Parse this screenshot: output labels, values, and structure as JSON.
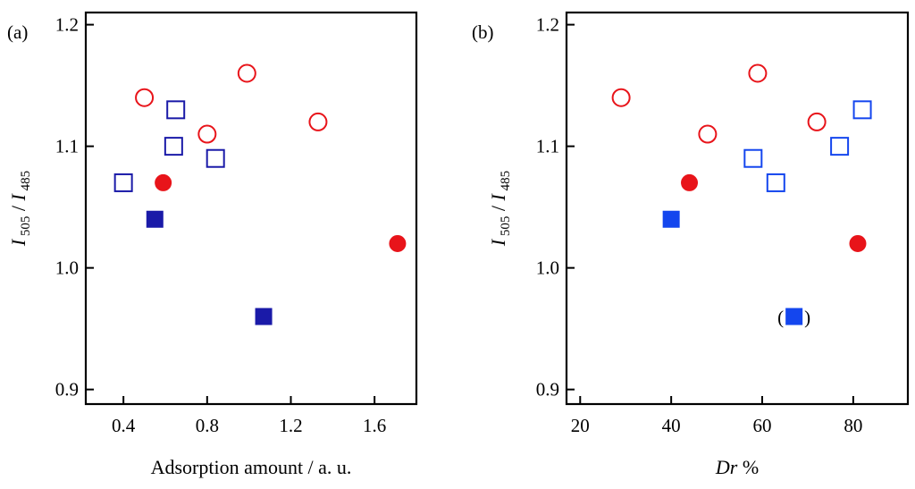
{
  "figure": {
    "colors": {
      "red": "#e8141a",
      "navy": "#1a1aa8",
      "blue": "#1446ee"
    }
  },
  "chart_data": [
    {
      "type": "scatter",
      "panel_label": "(a)",
      "xlabel": "Adsorption amount / a. u.",
      "ylabel": {
        "i1": "I",
        "s1": "505",
        "sep": " / ",
        "i2": "I",
        "s2": "485"
      },
      "xlim": [
        0.22,
        1.8
      ],
      "ylim": [
        0.888,
        1.21
      ],
      "xticks": [
        0.4,
        0.8,
        1.2,
        1.6
      ],
      "xtick_labels": [
        "0.4",
        "0.8",
        "1.2",
        "1.6"
      ],
      "yticks": [
        0.9,
        1.0,
        1.1,
        1.2
      ],
      "ytick_labels": [
        "0.9",
        "1.0",
        "1.1",
        "1.2"
      ],
      "series": [
        {
          "name": "open-circles",
          "marker": "circle",
          "filled": false,
          "color": "#e8141a",
          "points": [
            {
              "x": 0.5,
              "y": 1.14
            },
            {
              "x": 0.99,
              "y": 1.16
            },
            {
              "x": 0.8,
              "y": 1.11
            },
            {
              "x": 1.33,
              "y": 1.12
            }
          ]
        },
        {
          "name": "filled-circles",
          "marker": "circle",
          "filled": true,
          "color": "#e8141a",
          "points": [
            {
              "x": 0.59,
              "y": 1.07
            },
            {
              "x": 1.71,
              "y": 1.02
            }
          ]
        },
        {
          "name": "open-squares",
          "marker": "square",
          "filled": false,
          "color": "#1a1aa8",
          "points": [
            {
              "x": 0.65,
              "y": 1.13
            },
            {
              "x": 0.64,
              "y": 1.1
            },
            {
              "x": 0.84,
              "y": 1.09
            },
            {
              "x": 0.4,
              "y": 1.07
            }
          ]
        },
        {
          "name": "filled-squares",
          "marker": "square",
          "filled": true,
          "color": "#1a1aa8",
          "points": [
            {
              "x": 0.55,
              "y": 1.04
            },
            {
              "x": 1.07,
              "y": 0.96
            }
          ]
        }
      ]
    },
    {
      "type": "scatter",
      "panel_label": "(b)",
      "xlabel": "Dr %",
      "xlabel_parts": {
        "italic": "Dr",
        "rest": " %"
      },
      "ylabel": {
        "i1": "I",
        "s1": "505",
        "sep": " / ",
        "i2": "I",
        "s2": "485"
      },
      "xlim": [
        17,
        92
      ],
      "ylim": [
        0.888,
        1.21
      ],
      "xticks": [
        20,
        40,
        60,
        80
      ],
      "xtick_labels": [
        "20",
        "40",
        "60",
        "80"
      ],
      "yticks": [
        0.9,
        1.0,
        1.1,
        1.2
      ],
      "ytick_labels": [
        "0.9",
        "1.0",
        "1.1",
        "1.2"
      ],
      "series": [
        {
          "name": "open-circles",
          "marker": "circle",
          "filled": false,
          "color": "#e8141a",
          "points": [
            {
              "x": 29,
              "y": 1.14
            },
            {
              "x": 59,
              "y": 1.16
            },
            {
              "x": 48,
              "y": 1.11
            },
            {
              "x": 72,
              "y": 1.12
            }
          ]
        },
        {
          "name": "filled-circles",
          "marker": "circle",
          "filled": true,
          "color": "#e8141a",
          "points": [
            {
              "x": 44,
              "y": 1.07
            },
            {
              "x": 81,
              "y": 1.02
            }
          ]
        },
        {
          "name": "open-squares",
          "marker": "square",
          "filled": false,
          "color": "#1446ee",
          "points": [
            {
              "x": 82,
              "y": 1.13
            },
            {
              "x": 77,
              "y": 1.1
            },
            {
              "x": 58,
              "y": 1.09
            },
            {
              "x": 63,
              "y": 1.07
            }
          ]
        },
        {
          "name": "filled-squares",
          "marker": "square",
          "filled": true,
          "color": "#1446ee",
          "points": [
            {
              "x": 40,
              "y": 1.04
            },
            {
              "x": 67,
              "y": 0.96,
              "annotation": {
                "left": "(",
                "right": ")"
              }
            }
          ]
        }
      ]
    }
  ]
}
